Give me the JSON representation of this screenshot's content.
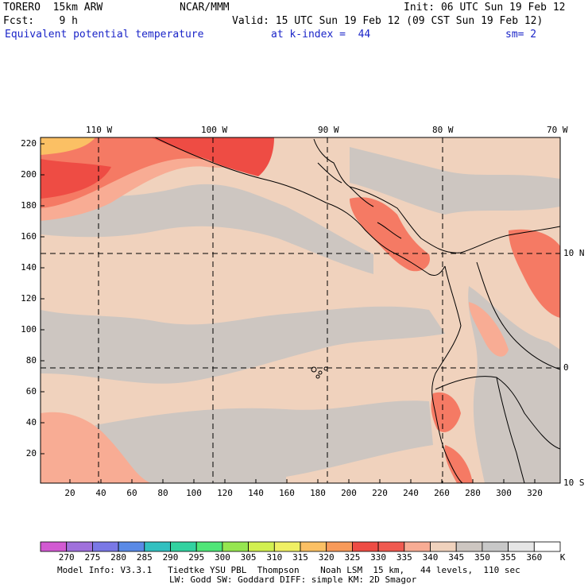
{
  "header": {
    "model": "TORERO  15km ARW",
    "center": "NCAR/MMM",
    "init": "Init: 06 UTC Sun 19 Feb 12",
    "fcst": "Fcst:    9 h",
    "valid": "Valid: 15 UTC Sun 19 Feb 12 (09 CST Sun 19 Feb 12)",
    "field": "Equivalent potential temperature",
    "level": "at k-index =  44",
    "smooth": "sm= 2"
  },
  "map": {
    "top_lon_labels": [
      "110 W",
      "100 W",
      "90 W",
      "80 W",
      "70 W"
    ],
    "right_lat_labels": [
      "10 N",
      "0",
      "10 S"
    ],
    "left_y_ticks": [
      "220",
      "200",
      "180",
      "160",
      "140",
      "120",
      "100",
      "80",
      "60",
      "40",
      "20"
    ],
    "bottom_x_ticks": [
      "20",
      "40",
      "60",
      "80",
      "100",
      "120",
      "140",
      "160",
      "180",
      "200",
      "220",
      "240",
      "260",
      "280",
      "300",
      "320"
    ],
    "colors": {
      "background_field": "#f0d2bd",
      "cool_field": "#cdc6c1",
      "warm_1": "#f8ac94",
      "warm_2": "#f57a64",
      "warm_3": "#ee4c44",
      "warm_4": "#fbc064",
      "land_gray": "#c8c8c8"
    }
  },
  "colorbar": {
    "labels": [
      "270",
      "275",
      "280",
      "285",
      "290",
      "295",
      "300",
      "305",
      "310",
      "315",
      "320",
      "325",
      "330",
      "335",
      "340",
      "345",
      "350",
      "355",
      "360"
    ],
    "unit": "K",
    "colors": [
      "#d25ad2",
      "#a070dc",
      "#7a78e6",
      "#5a8ae6",
      "#32c0c0",
      "#32d2a0",
      "#50e678",
      "#96e650",
      "#d2f050",
      "#f0f064",
      "#fbc064",
      "#f89a5a",
      "#ee4c44",
      "#f05a50",
      "#f8ac94",
      "#f0d2bd",
      "#cdc6c1",
      "#c8c8c8",
      "#e6e6e6",
      "#ffffff"
    ]
  },
  "footer": {
    "line1": "Model Info: V3.3.1   Tiedtke YSU PBL  Thompson    Noah LSM  15 km,   44 levels,  110 sec",
    "line2": "LW: Godd SW: Goddard DIFF: simple KM: 2D Smagor"
  }
}
